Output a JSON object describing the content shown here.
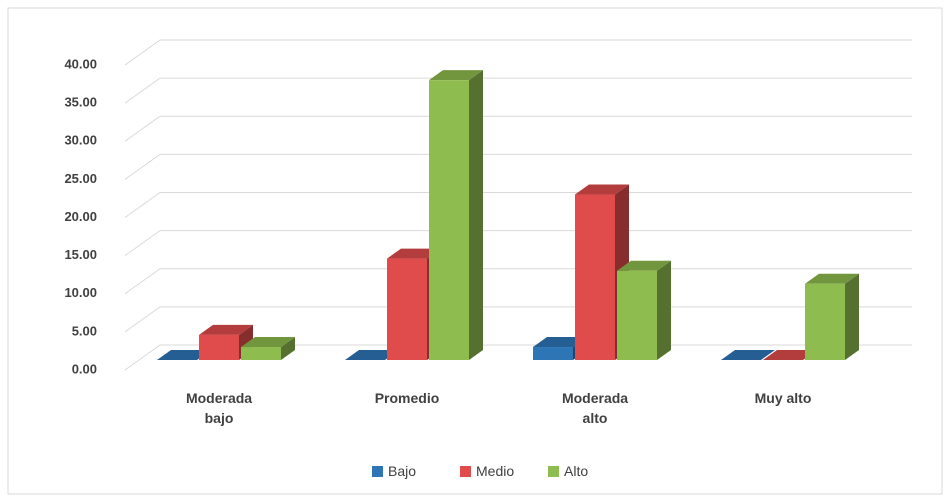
{
  "chart_data": {
    "type": "bar3d",
    "categories": [
      "Moderada bajo",
      "Promedio",
      "Moderada alto",
      "Muy alto"
    ],
    "series": [
      {
        "name": "Bajo",
        "color": "#2e75b6",
        "values": [
          0,
          0,
          1.7,
          0
        ]
      },
      {
        "name": "Medio",
        "color": "#e04b4b",
        "values": [
          3.3,
          13.3,
          21.7,
          0
        ]
      },
      {
        "name": "Alto",
        "color": "#8fbc4e",
        "values": [
          1.7,
          36.7,
          11.7,
          10
        ]
      }
    ],
    "ylim": [
      0,
      40
    ],
    "yticks": [
      {
        "value": 0,
        "label": "0.00"
      },
      {
        "value": 5,
        "label": "5.00"
      },
      {
        "value": 10,
        "label": "10.00"
      },
      {
        "value": 15,
        "label": "15.00"
      },
      {
        "value": 20,
        "label": "20.00"
      },
      {
        "value": 25,
        "label": "25.00"
      },
      {
        "value": 30,
        "label": "30.00"
      },
      {
        "value": 35,
        "label": "35.00"
      },
      {
        "value": 40,
        "label": "40.00"
      }
    ],
    "grid": true,
    "legend": "bottom"
  }
}
